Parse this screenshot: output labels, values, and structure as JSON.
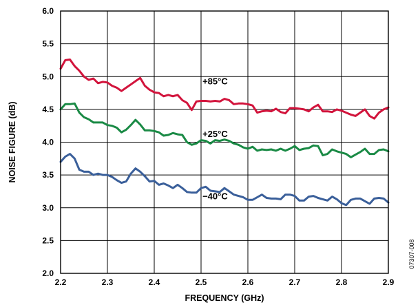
{
  "chart_data": {
    "type": "line",
    "xlabel": "FREQUENCY (GHz)",
    "ylabel": "NOISE FIGURE (dB)",
    "xlim": [
      2.2,
      2.9
    ],
    "ylim": [
      2.0,
      6.0
    ],
    "xticks": [
      "2.2",
      "2.3",
      "2.4",
      "2.5",
      "2.6",
      "2.7",
      "2.8",
      "2.9"
    ],
    "yticks": [
      "2.0",
      "2.5",
      "3.0",
      "3.5",
      "4.0",
      "4.5",
      "5.0",
      "5.5",
      "6.0"
    ],
    "grid": true,
    "figure_id": "07307-008",
    "series": [
      {
        "name": "+85°C",
        "color": "#d2143c",
        "label_at": [
          2.53,
          4.88
        ],
        "x": [
          2.2,
          2.21,
          2.22,
          2.23,
          2.24,
          2.25,
          2.26,
          2.27,
          2.28,
          2.29,
          2.3,
          2.31,
          2.32,
          2.33,
          2.34,
          2.35,
          2.36,
          2.37,
          2.38,
          2.39,
          2.4,
          2.41,
          2.42,
          2.43,
          2.44,
          2.45,
          2.46,
          2.47,
          2.48,
          2.49,
          2.5,
          2.51,
          2.52,
          2.53,
          2.54,
          2.55,
          2.56,
          2.57,
          2.58,
          2.59,
          2.6,
          2.61,
          2.62,
          2.63,
          2.64,
          2.65,
          2.66,
          2.67,
          2.68,
          2.69,
          2.7,
          2.71,
          2.72,
          2.73,
          2.74,
          2.75,
          2.76,
          2.77,
          2.78,
          2.79,
          2.8,
          2.81,
          2.82,
          2.83,
          2.84,
          2.85,
          2.86,
          2.87,
          2.88,
          2.89,
          2.9
        ],
        "values": [
          5.12,
          5.25,
          5.26,
          5.16,
          5.09,
          5.0,
          4.95,
          4.97,
          4.9,
          4.92,
          4.91,
          4.86,
          4.83,
          4.78,
          4.83,
          4.88,
          4.93,
          4.98,
          4.86,
          4.8,
          4.76,
          4.75,
          4.7,
          4.72,
          4.7,
          4.72,
          4.64,
          4.6,
          4.49,
          4.62,
          4.63,
          4.63,
          4.62,
          4.63,
          4.62,
          4.66,
          4.64,
          4.58,
          4.59,
          4.59,
          4.58,
          4.56,
          4.45,
          4.47,
          4.48,
          4.47,
          4.51,
          4.46,
          4.44,
          4.52,
          4.52,
          4.51,
          4.5,
          4.47,
          4.53,
          4.57,
          4.47,
          4.47,
          4.46,
          4.5,
          4.48,
          4.45,
          4.42,
          4.4,
          4.45,
          4.5,
          4.4,
          4.36,
          4.45,
          4.5,
          4.53
        ]
      },
      {
        "name": "+25°C",
        "color": "#1a8a45",
        "label_at": [
          2.53,
          4.08
        ],
        "x": [
          2.2,
          2.21,
          2.22,
          2.23,
          2.24,
          2.25,
          2.26,
          2.27,
          2.28,
          2.29,
          2.3,
          2.31,
          2.32,
          2.33,
          2.34,
          2.35,
          2.36,
          2.37,
          2.38,
          2.39,
          2.4,
          2.41,
          2.42,
          2.43,
          2.44,
          2.45,
          2.46,
          2.47,
          2.48,
          2.49,
          2.5,
          2.51,
          2.52,
          2.53,
          2.54,
          2.55,
          2.56,
          2.57,
          2.58,
          2.59,
          2.6,
          2.61,
          2.62,
          2.63,
          2.64,
          2.65,
          2.66,
          2.67,
          2.68,
          2.69,
          2.7,
          2.71,
          2.72,
          2.73,
          2.74,
          2.75,
          2.76,
          2.77,
          2.78,
          2.79,
          2.8,
          2.81,
          2.82,
          2.83,
          2.84,
          2.85,
          2.86,
          2.87,
          2.88,
          2.89,
          2.9
        ],
        "values": [
          4.5,
          4.58,
          4.58,
          4.59,
          4.45,
          4.38,
          4.35,
          4.3,
          4.3,
          4.3,
          4.26,
          4.25,
          4.22,
          4.15,
          4.19,
          4.26,
          4.34,
          4.27,
          4.18,
          4.18,
          4.17,
          4.15,
          4.1,
          4.11,
          4.14,
          4.12,
          4.11,
          4.0,
          3.96,
          3.98,
          4.03,
          4.02,
          3.98,
          4.03,
          4.02,
          4.04,
          4.02,
          3.98,
          3.96,
          3.92,
          3.9,
          3.93,
          3.87,
          3.89,
          3.88,
          3.89,
          3.87,
          3.9,
          3.87,
          3.9,
          3.94,
          3.88,
          3.9,
          3.91,
          3.95,
          3.94,
          3.8,
          3.82,
          3.89,
          3.86,
          3.84,
          3.82,
          3.77,
          3.81,
          3.85,
          3.9,
          3.82,
          3.82,
          3.88,
          3.89,
          3.86
        ]
      },
      {
        "name": "−40°C",
        "color": "#3a5f9a",
        "label_at": [
          2.53,
          3.13
        ],
        "x": [
          2.2,
          2.21,
          2.22,
          2.23,
          2.24,
          2.25,
          2.26,
          2.27,
          2.28,
          2.29,
          2.3,
          2.31,
          2.32,
          2.33,
          2.34,
          2.35,
          2.36,
          2.37,
          2.38,
          2.39,
          2.4,
          2.41,
          2.42,
          2.43,
          2.44,
          2.45,
          2.46,
          2.47,
          2.48,
          2.49,
          2.5,
          2.51,
          2.52,
          2.53,
          2.54,
          2.55,
          2.56,
          2.57,
          2.58,
          2.59,
          2.6,
          2.61,
          2.62,
          2.63,
          2.64,
          2.65,
          2.66,
          2.67,
          2.68,
          2.69,
          2.7,
          2.71,
          2.72,
          2.73,
          2.74,
          2.75,
          2.76,
          2.77,
          2.78,
          2.79,
          2.8,
          2.81,
          2.82,
          2.83,
          2.84,
          2.85,
          2.86,
          2.87,
          2.88,
          2.89,
          2.9
        ],
        "values": [
          3.7,
          3.78,
          3.82,
          3.75,
          3.58,
          3.55,
          3.55,
          3.5,
          3.52,
          3.5,
          3.5,
          3.47,
          3.42,
          3.38,
          3.4,
          3.52,
          3.6,
          3.55,
          3.48,
          3.4,
          3.41,
          3.35,
          3.37,
          3.34,
          3.3,
          3.35,
          3.3,
          3.24,
          3.23,
          3.23,
          3.3,
          3.32,
          3.26,
          3.25,
          3.24,
          3.3,
          3.25,
          3.2,
          3.18,
          3.16,
          3.12,
          3.12,
          3.16,
          3.2,
          3.15,
          3.14,
          3.14,
          3.13,
          3.2,
          3.2,
          3.18,
          3.11,
          3.11,
          3.17,
          3.18,
          3.15,
          3.13,
          3.11,
          3.17,
          3.13,
          3.07,
          3.04,
          3.12,
          3.14,
          3.14,
          3.1,
          3.06,
          3.14,
          3.15,
          3.14,
          3.08
        ]
      }
    ]
  }
}
